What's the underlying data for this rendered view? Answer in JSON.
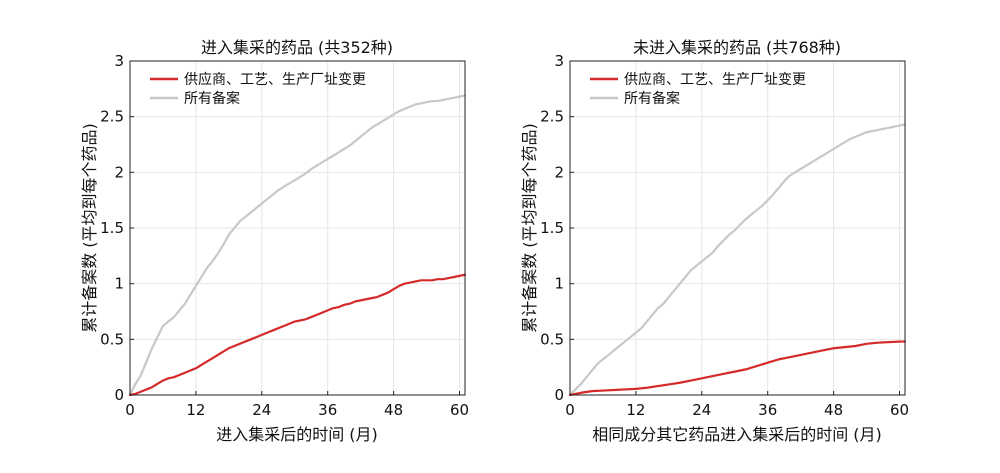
{
  "chart_data": [
    {
      "type": "line",
      "title": "进入集采的药品 (共352种)",
      "xlabel": "进入集采后的时间 (月)",
      "ylabel": "累计备案数 (平均到每个药品)",
      "xlim": [
        0,
        61
      ],
      "ylim": [
        0,
        3
      ],
      "xticks": [
        "0",
        "12",
        "24",
        "36",
        "48",
        "60"
      ],
      "yticks": [
        "0",
        "0.5",
        "1",
        "1.5",
        "2",
        "2.5",
        "3"
      ],
      "grid": true,
      "legend_position": "top-left",
      "series": [
        {
          "name": "供应商、工艺、生产厂址变更",
          "color": "#d42a2a",
          "x": [
            0,
            1,
            2,
            3,
            4,
            5,
            6,
            7,
            8,
            9,
            10,
            11,
            12,
            13,
            14,
            15,
            16,
            17,
            18,
            19,
            20,
            21,
            22,
            23,
            24,
            25,
            26,
            27,
            28,
            29,
            30,
            31,
            32,
            33,
            34,
            35,
            36,
            37,
            38,
            39,
            40,
            41,
            42,
            43,
            44,
            45,
            46,
            47,
            48,
            49,
            50,
            51,
            52,
            53,
            54,
            55,
            56,
            57,
            58,
            59,
            60,
            61
          ],
          "y": [
            0,
            0.01,
            0.03,
            0.05,
            0.07,
            0.1,
            0.13,
            0.15,
            0.16,
            0.18,
            0.2,
            0.22,
            0.24,
            0.27,
            0.3,
            0.33,
            0.36,
            0.39,
            0.42,
            0.44,
            0.46,
            0.48,
            0.5,
            0.52,
            0.54,
            0.56,
            0.58,
            0.6,
            0.62,
            0.64,
            0.66,
            0.67,
            0.68,
            0.7,
            0.72,
            0.74,
            0.76,
            0.78,
            0.79,
            0.81,
            0.82,
            0.84,
            0.85,
            0.86,
            0.87,
            0.88,
            0.9,
            0.92,
            0.95,
            0.98,
            1.0,
            1.01,
            1.02,
            1.03,
            1.03,
            1.03,
            1.04,
            1.04,
            1.05,
            1.06,
            1.07,
            1.08
          ]
        },
        {
          "name": "所有备案",
          "color": "#c8c8c8",
          "x": [
            0,
            1,
            2,
            3,
            4,
            5,
            6,
            7,
            8,
            9,
            10,
            11,
            12,
            13,
            14,
            15,
            16,
            17,
            18,
            19,
            20,
            21,
            22,
            23,
            24,
            25,
            26,
            27,
            28,
            29,
            30,
            31,
            32,
            33,
            34,
            35,
            36,
            37,
            38,
            39,
            40,
            41,
            42,
            43,
            44,
            45,
            46,
            47,
            48,
            49,
            50,
            51,
            52,
            53,
            54,
            55,
            56,
            57,
            58,
            59,
            60,
            61
          ],
          "y": [
            0,
            0.1,
            0.18,
            0.3,
            0.42,
            0.52,
            0.62,
            0.66,
            0.7,
            0.76,
            0.82,
            0.9,
            0.98,
            1.06,
            1.14,
            1.2,
            1.27,
            1.35,
            1.44,
            1.5,
            1.56,
            1.6,
            1.64,
            1.68,
            1.72,
            1.76,
            1.8,
            1.84,
            1.87,
            1.9,
            1.93,
            1.96,
            1.99,
            2.03,
            2.06,
            2.09,
            2.12,
            2.15,
            2.18,
            2.21,
            2.24,
            2.28,
            2.32,
            2.36,
            2.4,
            2.43,
            2.46,
            2.49,
            2.52,
            2.55,
            2.57,
            2.59,
            2.61,
            2.62,
            2.63,
            2.64,
            2.64,
            2.65,
            2.66,
            2.67,
            2.68,
            2.69
          ]
        }
      ]
    },
    {
      "type": "line",
      "title": "未进入集采的药品 (共768种)",
      "xlabel": "相同成分其它药品进入集采后的时间 (月)",
      "ylabel": "累计备案数 (平均到每个药品)",
      "xlim": [
        0,
        61
      ],
      "ylim": [
        0,
        3
      ],
      "xticks": [
        "0",
        "12",
        "24",
        "36",
        "48",
        "60"
      ],
      "yticks": [
        "0",
        "0.5",
        "1",
        "1.5",
        "2",
        "2.5",
        "3"
      ],
      "grid": true,
      "legend_position": "top-left",
      "series": [
        {
          "name": "供应商、工艺、生产厂址变更",
          "color": "#d42a2a",
          "x": [
            0,
            2,
            4,
            6,
            8,
            10,
            12,
            14,
            16,
            18,
            20,
            22,
            24,
            26,
            28,
            30,
            32,
            34,
            36,
            38,
            40,
            42,
            44,
            46,
            48,
            50,
            52,
            54,
            56,
            58,
            60,
            61
          ],
          "y": [
            0,
            0.02,
            0.035,
            0.04,
            0.045,
            0.05,
            0.055,
            0.065,
            0.08,
            0.095,
            0.11,
            0.13,
            0.15,
            0.17,
            0.19,
            0.21,
            0.23,
            0.26,
            0.29,
            0.32,
            0.34,
            0.36,
            0.38,
            0.4,
            0.42,
            0.43,
            0.44,
            0.46,
            0.47,
            0.475,
            0.48,
            0.48
          ]
        },
        {
          "name": "所有备案",
          "color": "#c8c8c8",
          "x": [
            0,
            1,
            2,
            3,
            4,
            5,
            6,
            7,
            8,
            9,
            10,
            11,
            12,
            13,
            14,
            15,
            16,
            17,
            18,
            19,
            20,
            21,
            22,
            23,
            24,
            25,
            26,
            27,
            28,
            29,
            30,
            31,
            32,
            33,
            34,
            35,
            36,
            37,
            38,
            39,
            40,
            41,
            42,
            43,
            44,
            45,
            46,
            47,
            48,
            49,
            50,
            51,
            52,
            53,
            54,
            55,
            56,
            57,
            58,
            59,
            60,
            61
          ],
          "y": [
            0,
            0.05,
            0.1,
            0.16,
            0.22,
            0.28,
            0.32,
            0.36,
            0.4,
            0.44,
            0.48,
            0.52,
            0.56,
            0.6,
            0.66,
            0.72,
            0.78,
            0.82,
            0.88,
            0.94,
            1.0,
            1.06,
            1.12,
            1.16,
            1.2,
            1.24,
            1.28,
            1.34,
            1.39,
            1.44,
            1.48,
            1.53,
            1.58,
            1.62,
            1.66,
            1.7,
            1.75,
            1.8,
            1.86,
            1.92,
            1.97,
            2.0,
            2.03,
            2.06,
            2.09,
            2.12,
            2.15,
            2.18,
            2.21,
            2.24,
            2.27,
            2.3,
            2.32,
            2.34,
            2.36,
            2.37,
            2.38,
            2.39,
            2.4,
            2.41,
            2.42,
            2.43
          ]
        }
      ]
    }
  ]
}
